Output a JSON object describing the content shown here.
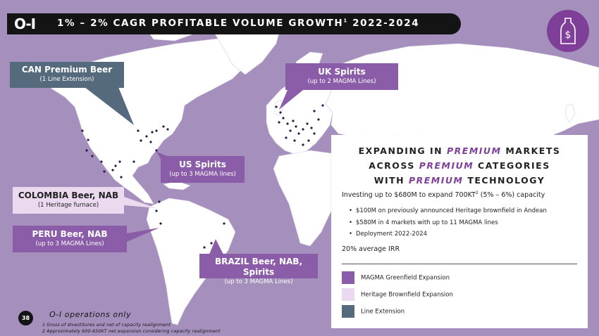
{
  "header": {
    "logo": "O-I",
    "title": "1% – 2% CAGR PROFITABLE VOLUME GROWTH",
    "title_sup": "1",
    "title_years": " 2022-2024"
  },
  "badge": {
    "icon": "bottle-dollar-icon",
    "color": "#7f3f98"
  },
  "callouts": {
    "can": {
      "title": "CAN Premium Beer",
      "sub": "(1 Line Extension)",
      "color": "#566a7e"
    },
    "uk": {
      "title": "UK Spirits",
      "sub": "(up to 2 MAGMA Lines)",
      "color": "#8b5ca8"
    },
    "us": {
      "title": "US  Spirits",
      "sub": "(up to 3 MAGMA lines)",
      "color": "#8b5ca8"
    },
    "colombia": {
      "title": "COLOMBIA Beer, NAB",
      "sub": "(1 Heritage furnace)",
      "color": "#ead9ef"
    },
    "peru": {
      "title": "PERU Beer, NAB",
      "sub": "(up to 3 MAGMA Lines)",
      "color": "#8b5ca8"
    },
    "brazil": {
      "title": "BRAZIL Beer, NAB, Spirits",
      "sub": "(up to 3 MAGMA Lines)",
      "color": "#8b5ca8"
    }
  },
  "panel": {
    "line1_a": "EXPANDING IN ",
    "line1_em": "PREMIUM",
    "line1_b": " MARKETS",
    "line2_a": "ACROSS ",
    "line2_em": "PREMIUM",
    "line2_b": " CATEGORIES",
    "line3_a": "WITH ",
    "line3_em": "PREMIUM",
    "line3_b": " TECHNOLOGY",
    "invest_a": "Investing up to $680M to expand 700KT",
    "invest_sup": "2",
    "invest_b": " (5% – 6%) capacity",
    "bullets": [
      "$100M on previously announced Heritage brownfield in Andean",
      "$580M in 4 markets with up to 11 MAGMA lines",
      "Deployment 2022-2024"
    ],
    "irr": "20% average IRR",
    "legend": [
      {
        "label": "MAGMA Greenfield Expansion",
        "color": "#8b5ca8"
      },
      {
        "label": "Heritage Brownfield Expansion",
        "color": "#ead9ef"
      },
      {
        "label": "Line Extension",
        "color": "#566a7e"
      }
    ]
  },
  "footer": {
    "page": "38",
    "ops": "O-I operations  only",
    "fn1": "1  Gross  of divestitures  and net of capacity realignment",
    "fn2": "2  Approximately  600-650KT  net expansion  considering  capacity realignment"
  }
}
